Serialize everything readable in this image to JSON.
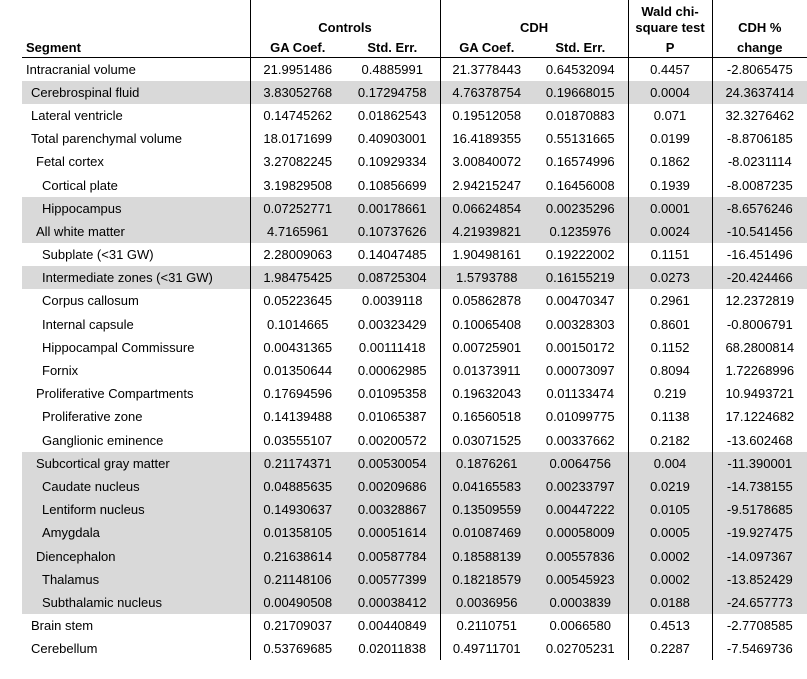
{
  "table": {
    "header": {
      "segment": "Segment",
      "controls_group": "Controls",
      "cdh_group": "CDH",
      "controls_ga_coef": "GA Coef.",
      "controls_std_err": "Std. Err.",
      "cdh_ga_coef": "GA Coef.",
      "cdh_std_err": "Std. Err.",
      "wald_line1": "Wald chi-",
      "wald_line2": "square test",
      "p": "P",
      "cdh_pct_line1": "CDH %",
      "cdh_pct_line2": "change"
    },
    "rows": [
      {
        "label": "Intracranial volume",
        "indent": 0,
        "shaded": false,
        "c_ga": "21.9951486",
        "c_se": "0.4885991",
        "d_ga": "21.3778443",
        "d_se": "0.64532094",
        "p": "0.4457",
        "pct": "-2.8065475"
      },
      {
        "label": "Cerebrospinal fluid",
        "indent": 1,
        "shaded": true,
        "c_ga": "3.83052768",
        "c_se": "0.17294758",
        "d_ga": "4.76378754",
        "d_se": "0.19668015",
        "p": "0.0004",
        "pct": "24.3637414"
      },
      {
        "label": "Lateral ventricle",
        "indent": 1,
        "shaded": false,
        "c_ga": "0.14745262",
        "c_se": "0.01862543",
        "d_ga": "0.19512058",
        "d_se": "0.01870883",
        "p": "0.071",
        "pct": "32.3276462"
      },
      {
        "label": "Total parenchymal volume",
        "indent": 1,
        "shaded": false,
        "c_ga": "18.0171699",
        "c_se": "0.40903001",
        "d_ga": "16.4189355",
        "d_se": "0.55131665",
        "p": "0.0199",
        "pct": "-8.8706185"
      },
      {
        "label": "Fetal cortex",
        "indent": 2,
        "shaded": false,
        "c_ga": "3.27082245",
        "c_se": "0.10929334",
        "d_ga": "3.00840072",
        "d_se": "0.16574996",
        "p": "0.1862",
        "pct": "-8.0231114"
      },
      {
        "label": "Cortical plate",
        "indent": 3,
        "shaded": false,
        "c_ga": "3.19829508",
        "c_se": "0.10856699",
        "d_ga": "2.94215247",
        "d_se": "0.16456008",
        "p": "0.1939",
        "pct": "-8.0087235"
      },
      {
        "label": "Hippocampus",
        "indent": 3,
        "shaded": true,
        "c_ga": "0.07252771",
        "c_se": "0.00178661",
        "d_ga": "0.06624854",
        "d_se": "0.00235296",
        "p": "0.0001",
        "pct": "-8.6576246"
      },
      {
        "label": "All white matter",
        "indent": 2,
        "shaded": true,
        "c_ga": "4.7165961",
        "c_se": "0.10737626",
        "d_ga": "4.21939821",
        "d_se": "0.1235976",
        "p": "0.0024",
        "pct": "-10.541456"
      },
      {
        "label": "Subplate (<31 GW)",
        "indent": 3,
        "shaded": false,
        "c_ga": "2.28009063",
        "c_se": "0.14047485",
        "d_ga": "1.90498161",
        "d_se": "0.19222002",
        "p": "0.1151",
        "pct": "-16.451496"
      },
      {
        "label": "Intermediate zones (<31 GW)",
        "indent": 3,
        "shaded": true,
        "c_ga": "1.98475425",
        "c_se": "0.08725304",
        "d_ga": "1.5793788",
        "d_se": "0.16155219",
        "p": "0.0273",
        "pct": "-20.424466"
      },
      {
        "label": "Corpus callosum",
        "indent": 3,
        "shaded": false,
        "c_ga": "0.05223645",
        "c_se": "0.0039118",
        "d_ga": "0.05862878",
        "d_se": "0.00470347",
        "p": "0.2961",
        "pct": "12.2372819"
      },
      {
        "label": "Internal capsule",
        "indent": 3,
        "shaded": false,
        "c_ga": "0.1014665",
        "c_se": "0.00323429",
        "d_ga": "0.10065408",
        "d_se": "0.00328303",
        "p": "0.8601",
        "pct": "-0.8006791"
      },
      {
        "label": "Hippocampal Commissure",
        "indent": 3,
        "shaded": false,
        "c_ga": "0.00431365",
        "c_se": "0.00111418",
        "d_ga": "0.00725901",
        "d_se": "0.00150172",
        "p": "0.1152",
        "pct": "68.2800814"
      },
      {
        "label": "Fornix",
        "indent": 3,
        "shaded": false,
        "c_ga": "0.01350644",
        "c_se": "0.00062985",
        "d_ga": "0.01373911",
        "d_se": "0.00073097",
        "p": "0.8094",
        "pct": "1.72268996"
      },
      {
        "label": "Proliferative Compartments",
        "indent": 2,
        "shaded": false,
        "c_ga": "0.17694596",
        "c_se": "0.01095358",
        "d_ga": "0.19632043",
        "d_se": "0.01133474",
        "p": "0.219",
        "pct": "10.9493721"
      },
      {
        "label": "Proliferative zone",
        "indent": 3,
        "shaded": false,
        "c_ga": "0.14139488",
        "c_se": "0.01065387",
        "d_ga": "0.16560518",
        "d_se": "0.01099775",
        "p": "0.1138",
        "pct": "17.1224682"
      },
      {
        "label": "Ganglionic eminence",
        "indent": 3,
        "shaded": false,
        "c_ga": "0.03555107",
        "c_se": "0.00200572",
        "d_ga": "0.03071525",
        "d_se": "0.00337662",
        "p": "0.2182",
        "pct": "-13.602468"
      },
      {
        "label": "Subcortical gray matter",
        "indent": 2,
        "shaded": true,
        "c_ga": "0.21174371",
        "c_se": "0.00530054",
        "d_ga": "0.1876261",
        "d_se": "0.0064756",
        "p": "0.004",
        "pct": "-11.390001"
      },
      {
        "label": "Caudate nucleus",
        "indent": 3,
        "shaded": true,
        "c_ga": "0.04885635",
        "c_se": "0.00209686",
        "d_ga": "0.04165583",
        "d_se": "0.00233797",
        "p": "0.0219",
        "pct": "-14.738155"
      },
      {
        "label": "Lentiform nucleus",
        "indent": 3,
        "shaded": true,
        "c_ga": "0.14930637",
        "c_se": "0.00328867",
        "d_ga": "0.13509559",
        "d_se": "0.00447222",
        "p": "0.0105",
        "pct": "-9.5178685"
      },
      {
        "label": "Amygdala",
        "indent": 3,
        "shaded": true,
        "c_ga": "0.01358105",
        "c_se": "0.00051614",
        "d_ga": "0.01087469",
        "d_se": "0.00058009",
        "p": "0.0005",
        "pct": "-19.927475"
      },
      {
        "label": "Diencephalon",
        "indent": 2,
        "shaded": true,
        "c_ga": "0.21638614",
        "c_se": "0.00587784",
        "d_ga": "0.18588139",
        "d_se": "0.00557836",
        "p": "0.0002",
        "pct": "-14.097367"
      },
      {
        "label": "Thalamus",
        "indent": 3,
        "shaded": true,
        "c_ga": "0.21148106",
        "c_se": "0.00577399",
        "d_ga": "0.18218579",
        "d_se": "0.00545923",
        "p": "0.0002",
        "pct": "-13.852429"
      },
      {
        "label": "Subthalamic nucleus",
        "indent": 3,
        "shaded": true,
        "c_ga": "0.00490508",
        "c_se": "0.00038412",
        "d_ga": "0.0036956",
        "d_se": "0.0003839",
        "p": "0.0188",
        "pct": "-24.657773"
      },
      {
        "label": "Brain stem",
        "indent": 1,
        "shaded": false,
        "c_ga": "0.21709037",
        "c_se": "0.00440849",
        "d_ga": "0.2110751",
        "d_se": "0.0066580",
        "p": "0.4513",
        "pct": "-2.7708585"
      },
      {
        "label": "Cerebellum",
        "indent": 1,
        "shaded": false,
        "c_ga": "0.53769685",
        "c_se": "0.02011838",
        "d_ga": "0.49711701",
        "d_se": "0.02705231",
        "p": "0.2287",
        "pct": "-7.5469736"
      }
    ]
  },
  "colors": {
    "row_shade": "#d9d9d9",
    "border": "#000000",
    "text": "#000000",
    "background": "#ffffff"
  }
}
